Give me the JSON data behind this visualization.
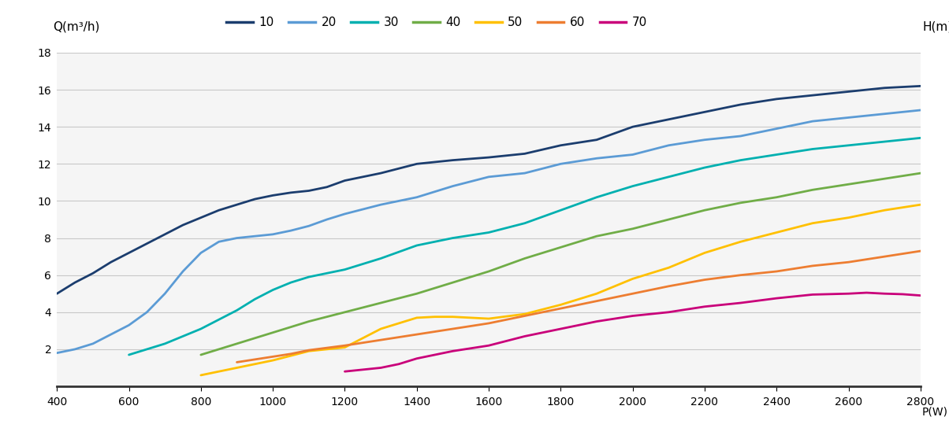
{
  "xlabel": "P(W)",
  "ylabel": "Q(m³/h)",
  "ylabel2": "H(m)",
  "xlim": [
    400,
    2800
  ],
  "ylim": [
    0,
    18
  ],
  "xticks": [
    400,
    600,
    800,
    1000,
    1200,
    1400,
    1600,
    1800,
    2000,
    2200,
    2400,
    2600,
    2800
  ],
  "yticks": [
    0,
    2,
    4,
    6,
    8,
    10,
    12,
    14,
    16,
    18
  ],
  "curves": [
    {
      "label": "10",
      "color": "#1b3d6e",
      "x": [
        400,
        450,
        500,
        550,
        600,
        650,
        700,
        750,
        800,
        850,
        900,
        950,
        1000,
        1050,
        1100,
        1150,
        1200,
        1300,
        1400,
        1500,
        1600,
        1700,
        1800,
        1900,
        2000,
        2100,
        2200,
        2300,
        2400,
        2500,
        2600,
        2700,
        2800
      ],
      "y": [
        5.0,
        5.6,
        6.1,
        6.7,
        7.2,
        7.7,
        8.2,
        8.7,
        9.1,
        9.5,
        9.8,
        10.1,
        10.3,
        10.45,
        10.55,
        10.75,
        11.1,
        11.5,
        12.0,
        12.2,
        12.35,
        12.55,
        13.0,
        13.3,
        14.0,
        14.4,
        14.8,
        15.2,
        15.5,
        15.7,
        15.9,
        16.1,
        16.2
      ]
    },
    {
      "label": "20",
      "color": "#5b9bd5",
      "x": [
        400,
        450,
        500,
        550,
        600,
        650,
        700,
        750,
        800,
        850,
        900,
        950,
        1000,
        1050,
        1100,
        1150,
        1200,
        1300,
        1400,
        1500,
        1600,
        1700,
        1800,
        1900,
        2000,
        2100,
        2200,
        2300,
        2400,
        2500,
        2600,
        2700,
        2800
      ],
      "y": [
        1.8,
        2.0,
        2.3,
        2.8,
        3.3,
        4.0,
        5.0,
        6.2,
        7.2,
        7.8,
        8.0,
        8.1,
        8.2,
        8.4,
        8.65,
        9.0,
        9.3,
        9.8,
        10.2,
        10.8,
        11.3,
        11.5,
        12.0,
        12.3,
        12.5,
        13.0,
        13.3,
        13.5,
        13.9,
        14.3,
        14.5,
        14.7,
        14.9
      ]
    },
    {
      "label": "30",
      "color": "#00b0b0",
      "x": [
        600,
        650,
        700,
        750,
        800,
        850,
        900,
        950,
        1000,
        1050,
        1100,
        1200,
        1300,
        1400,
        1500,
        1600,
        1700,
        1800,
        1900,
        2000,
        2100,
        2200,
        2300,
        2400,
        2500,
        2600,
        2700,
        2800
      ],
      "y": [
        1.7,
        2.0,
        2.3,
        2.7,
        3.1,
        3.6,
        4.1,
        4.7,
        5.2,
        5.6,
        5.9,
        6.3,
        6.9,
        7.6,
        8.0,
        8.3,
        8.8,
        9.5,
        10.2,
        10.8,
        11.3,
        11.8,
        12.2,
        12.5,
        12.8,
        13.0,
        13.2,
        13.4
      ]
    },
    {
      "label": "40",
      "color": "#70ad47",
      "x": [
        800,
        850,
        900,
        950,
        1000,
        1050,
        1100,
        1200,
        1300,
        1400,
        1500,
        1600,
        1700,
        1800,
        1900,
        2000,
        2100,
        2200,
        2300,
        2400,
        2500,
        2600,
        2700,
        2800
      ],
      "y": [
        1.7,
        2.0,
        2.3,
        2.6,
        2.9,
        3.2,
        3.5,
        4.0,
        4.5,
        5.0,
        5.6,
        6.2,
        6.9,
        7.5,
        8.1,
        8.5,
        9.0,
        9.5,
        9.9,
        10.2,
        10.6,
        10.9,
        11.2,
        11.5
      ]
    },
    {
      "label": "50",
      "color": "#ffc000",
      "x": [
        800,
        850,
        900,
        950,
        1000,
        1100,
        1200,
        1300,
        1400,
        1450,
        1500,
        1550,
        1600,
        1700,
        1800,
        1900,
        2000,
        2100,
        2200,
        2300,
        2400,
        2500,
        2600,
        2700,
        2800
      ],
      "y": [
        0.6,
        0.8,
        1.0,
        1.2,
        1.4,
        1.9,
        2.1,
        3.1,
        3.7,
        3.75,
        3.75,
        3.7,
        3.65,
        3.9,
        4.4,
        5.0,
        5.8,
        6.4,
        7.2,
        7.8,
        8.3,
        8.8,
        9.1,
        9.5,
        9.8
      ]
    },
    {
      "label": "60",
      "color": "#ed7d31",
      "x": [
        900,
        950,
        1000,
        1050,
        1100,
        1200,
        1300,
        1400,
        1500,
        1600,
        1700,
        1800,
        1900,
        2000,
        2100,
        2200,
        2300,
        2400,
        2500,
        2600,
        2700,
        2800
      ],
      "y": [
        1.3,
        1.45,
        1.6,
        1.75,
        1.95,
        2.2,
        2.5,
        2.8,
        3.1,
        3.4,
        3.8,
        4.2,
        4.6,
        5.0,
        5.4,
        5.75,
        6.0,
        6.2,
        6.5,
        6.7,
        7.0,
        7.3
      ]
    },
    {
      "label": "70",
      "color": "#c9007a",
      "x": [
        1200,
        1250,
        1300,
        1350,
        1400,
        1500,
        1600,
        1700,
        1800,
        1900,
        2000,
        2100,
        2200,
        2300,
        2400,
        2500,
        2600,
        2650,
        2700,
        2750,
        2800
      ],
      "y": [
        0.8,
        0.9,
        1.0,
        1.2,
        1.5,
        1.9,
        2.2,
        2.7,
        3.1,
        3.5,
        3.8,
        4.0,
        4.3,
        4.5,
        4.75,
        4.95,
        5.0,
        5.05,
        5.0,
        4.97,
        4.9
      ]
    }
  ],
  "background_color": "#ffffff",
  "plot_bg_color": "#f5f5f5",
  "grid_color": "#c8c8c8",
  "legend_labels": [
    "10",
    "20",
    "30",
    "40",
    "50",
    "60",
    "70"
  ],
  "legend_colors": [
    "#1b3d6e",
    "#5b9bd5",
    "#00b0b0",
    "#70ad47",
    "#ffc000",
    "#ed7d31",
    "#c9007a"
  ]
}
